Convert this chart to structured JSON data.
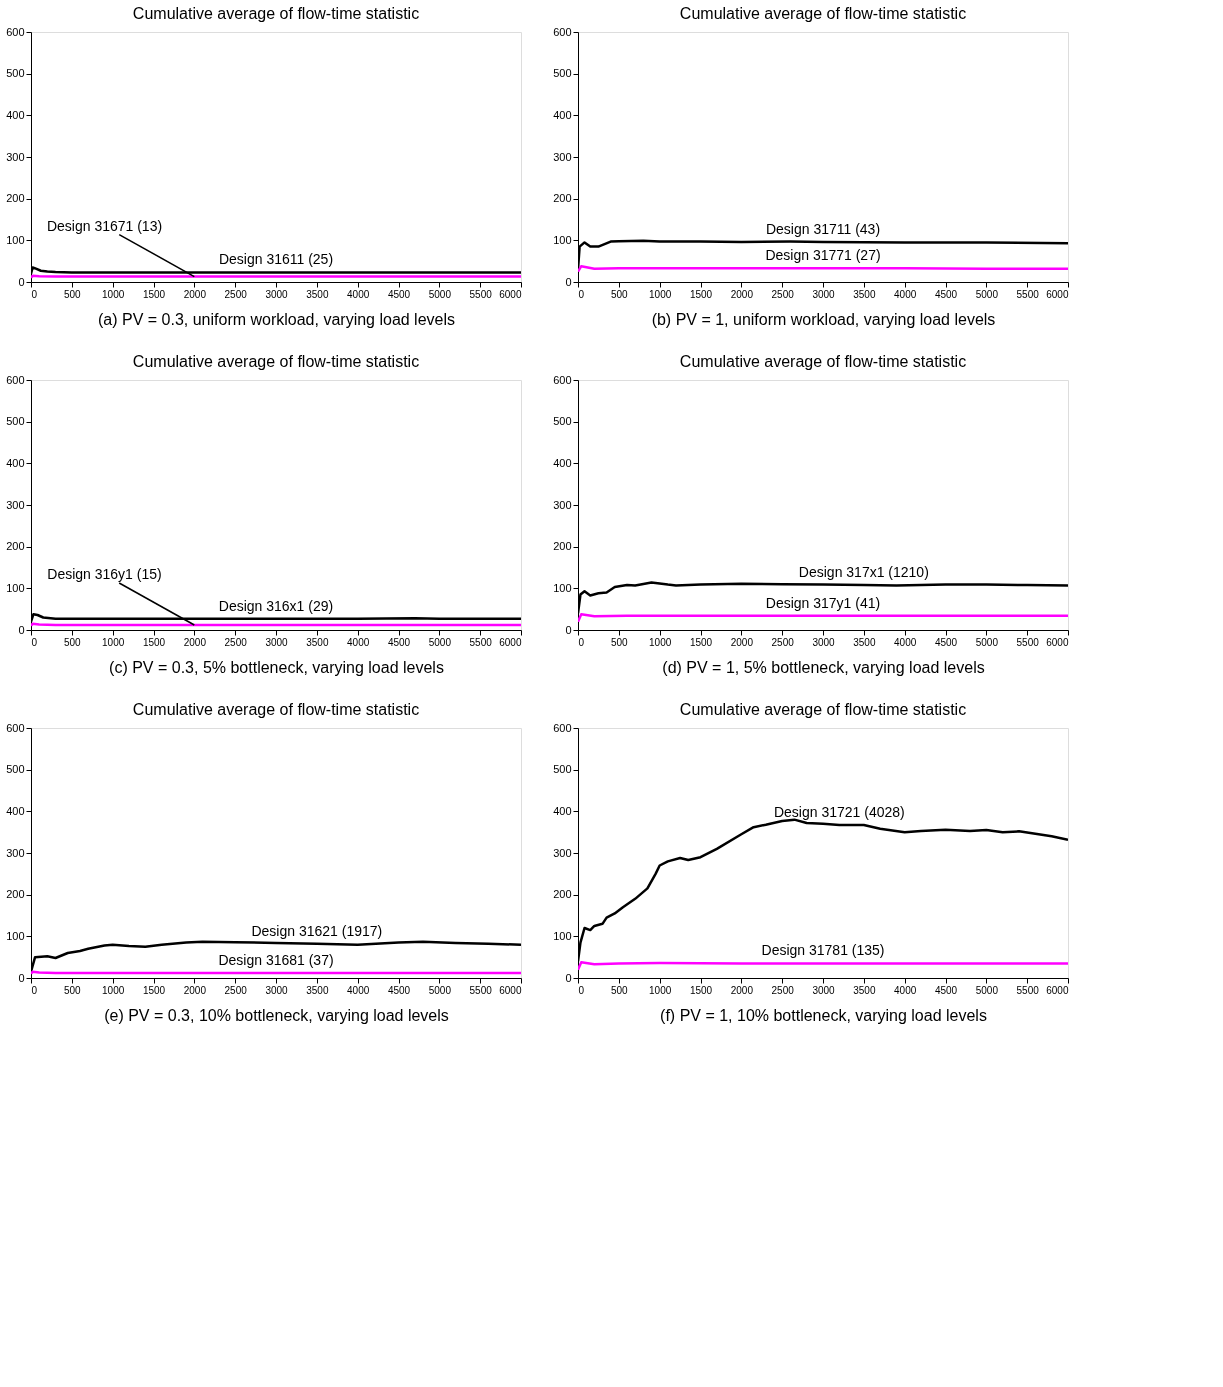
{
  "chart_data": [
    {
      "type": "line",
      "title": "Cumulative average of flow-time statistic",
      "xlabel": "(a) PV = 0.3, uniform workload, varying load levels",
      "xlim": [
        0,
        6000
      ],
      "ylim": [
        0,
        600
      ],
      "xticks": [
        0,
        500,
        1000,
        1500,
        2000,
        2500,
        3000,
        3500,
        4000,
        4500,
        5000,
        5500,
        6000
      ],
      "yticks": [
        0,
        100,
        200,
        300,
        400,
        500,
        600
      ],
      "grid": false,
      "legend": false,
      "line_style": "solid",
      "series": [
        {
          "name": "Design 31611 (25)",
          "color": "#000000",
          "x": [
            0,
            20,
            60,
            120,
            200,
            300,
            500,
            1000,
            2000,
            3000,
            4000,
            5000,
            6000
          ],
          "values": [
            20,
            35,
            32,
            27,
            25,
            24,
            23,
            23,
            23,
            23,
            23,
            23,
            23
          ]
        },
        {
          "name": "Design 31671 (13)",
          "color": "#ff00ff",
          "x": [
            0,
            20,
            100,
            300,
            1000,
            2000,
            3000,
            4000,
            5000,
            6000
          ],
          "values": [
            10,
            15,
            14,
            13,
            13,
            13,
            13,
            13,
            13,
            13
          ]
        }
      ]
    },
    {
      "type": "line",
      "title": "Cumulative average of flow-time statistic",
      "xlabel": "(b) PV = 1, uniform workload, varying load levels",
      "xlim": [
        0,
        6000
      ],
      "ylim": [
        0,
        600
      ],
      "xticks": [
        0,
        500,
        1000,
        1500,
        2000,
        2500,
        3000,
        3500,
        4000,
        4500,
        5000,
        5500,
        6000
      ],
      "yticks": [
        0,
        100,
        200,
        300,
        400,
        500,
        600
      ],
      "grid": false,
      "legend": false,
      "line_style": "solid",
      "series": [
        {
          "name": "Design 31711 (43)",
          "color": "#000000",
          "x": [
            0,
            20,
            80,
            150,
            250,
            400,
            500,
            800,
            1000,
            1500,
            2000,
            2600,
            3000,
            4000,
            5000,
            6000
          ],
          "values": [
            30,
            85,
            95,
            85,
            85,
            97,
            98,
            99,
            97,
            97,
            96,
            97,
            96,
            95,
            95,
            93
          ]
        },
        {
          "name": "Design 31771 (27)",
          "color": "#ff00ff",
          "x": [
            0,
            40,
            200,
            500,
            1000,
            2000,
            3000,
            4000,
            5000,
            6000
          ],
          "values": [
            25,
            38,
            32,
            33,
            33,
            33,
            33,
            33,
            32,
            32
          ]
        }
      ]
    },
    {
      "type": "line",
      "title": "Cumulative average of flow-time statistic",
      "xlabel": "(c) PV = 0.3, 5% bottleneck, varying load levels",
      "xlim": [
        0,
        6000
      ],
      "ylim": [
        0,
        600
      ],
      "xticks": [
        0,
        500,
        1000,
        1500,
        2000,
        2500,
        3000,
        3500,
        4000,
        4500,
        5000,
        5500,
        6000
      ],
      "yticks": [
        0,
        100,
        200,
        300,
        400,
        500,
        600
      ],
      "grid": false,
      "legend": false,
      "line_style": "solid",
      "series": [
        {
          "name": "Design 316x1 (29)",
          "color": "#000000",
          "x": [
            0,
            30,
            80,
            150,
            300,
            1000,
            2000,
            3000,
            4000,
            4700,
            5000,
            6000
          ],
          "values": [
            20,
            38,
            36,
            30,
            27,
            27,
            27,
            27,
            27,
            28,
            27,
            27
          ]
        },
        {
          "name": "Design 316y1 (15)",
          "color": "#ff00ff",
          "x": [
            0,
            20,
            100,
            300,
            1000,
            2000,
            3000,
            4000,
            5000,
            6000
          ],
          "values": [
            10,
            15,
            13,
            12,
            12,
            12,
            12,
            12,
            12,
            12
          ]
        }
      ]
    },
    {
      "type": "line",
      "title": "Cumulative average of flow-time statistic",
      "xlabel": "(d) PV = 1, 5% bottleneck, varying load levels",
      "xlim": [
        0,
        6000
      ],
      "ylim": [
        0,
        600
      ],
      "xticks": [
        0,
        500,
        1000,
        1500,
        2000,
        2500,
        3000,
        3500,
        4000,
        4500,
        5000,
        5500,
        6000
      ],
      "yticks": [
        0,
        100,
        200,
        300,
        400,
        500,
        600
      ],
      "grid": false,
      "legend": false,
      "line_style": "solid",
      "series": [
        {
          "name": "Design 317x1 (1210)",
          "color": "#000000",
          "x": [
            0,
            30,
            80,
            150,
            250,
            350,
            450,
            600,
            700,
            900,
            1100,
            1200,
            1500,
            2000,
            2500,
            3000,
            3500,
            3900,
            4500,
            5000,
            5500,
            6000
          ],
          "values": [
            40,
            85,
            93,
            83,
            88,
            90,
            103,
            108,
            107,
            114,
            109,
            107,
            109,
            111,
            110,
            109,
            108,
            107,
            109,
            109,
            108,
            107
          ]
        },
        {
          "name": "Design 317y1 (41)",
          "color": "#ff00ff",
          "x": [
            0,
            40,
            200,
            600,
            1000,
            2000,
            3000,
            4000,
            5000,
            6000
          ],
          "values": [
            20,
            38,
            33,
            34,
            34,
            34,
            34,
            34,
            34,
            34
          ]
        }
      ]
    },
    {
      "type": "line",
      "title": "Cumulative average of flow-time statistic",
      "xlabel": "(e) PV = 0.3, 10% bottleneck, varying load levels",
      "xlim": [
        0,
        6000
      ],
      "ylim": [
        0,
        600
      ],
      "xticks": [
        0,
        500,
        1000,
        1500,
        2000,
        2500,
        3000,
        3500,
        4000,
        4500,
        5000,
        5500,
        6000
      ],
      "yticks": [
        0,
        100,
        200,
        300,
        400,
        500,
        600
      ],
      "grid": false,
      "legend": false,
      "line_style": "solid",
      "series": [
        {
          "name": "Design 31621 (1917)",
          "color": "#000000",
          "x": [
            0,
            50,
            200,
            300,
            450,
            600,
            700,
            900,
            1000,
            1200,
            1400,
            1600,
            1900,
            2100,
            2500,
            3000,
            3500,
            4000,
            4500,
            4800,
            5200,
            5600,
            6000
          ],
          "values": [
            15,
            50,
            52,
            48,
            60,
            65,
            70,
            78,
            80,
            77,
            75,
            80,
            85,
            87,
            86,
            84,
            82,
            80,
            85,
            87,
            84,
            82,
            80
          ]
        },
        {
          "name": "Design 31681 (37)",
          "color": "#ff00ff",
          "x": [
            0,
            20,
            100,
            300,
            1000,
            2000,
            3000,
            4000,
            5000,
            6000
          ],
          "values": [
            10,
            15,
            13,
            12,
            12,
            12,
            12,
            12,
            12,
            12
          ]
        }
      ]
    },
    {
      "type": "line",
      "title": "Cumulative average of flow-time statistic",
      "xlabel": "(f) PV = 1, 10% bottleneck, varying load levels",
      "xlim": [
        0,
        6000
      ],
      "ylim": [
        0,
        600
      ],
      "xticks": [
        0,
        500,
        1000,
        1500,
        2000,
        2500,
        3000,
        3500,
        4000,
        4500,
        5000,
        5500,
        6000
      ],
      "yticks": [
        0,
        100,
        200,
        300,
        400,
        500,
        600
      ],
      "grid": false,
      "legend": false,
      "line_style": "solid",
      "series": [
        {
          "name": "Design 31721 (4028)",
          "color": "#000000",
          "x": [
            0,
            30,
            80,
            150,
            200,
            300,
            350,
            450,
            550,
            700,
            850,
            950,
            1000,
            1100,
            1250,
            1350,
            1500,
            1700,
            2000,
            2150,
            2300,
            2500,
            2650,
            2800,
            3000,
            3200,
            3500,
            3700,
            4000,
            4200,
            4500,
            4800,
            5000,
            5200,
            5400,
            5600,
            5800,
            6000
          ],
          "values": [
            40,
            85,
            120,
            115,
            125,
            130,
            145,
            155,
            170,
            190,
            215,
            250,
            270,
            280,
            288,
            283,
            290,
            310,
            345,
            362,
            368,
            377,
            380,
            372,
            370,
            367,
            367,
            358,
            350,
            353,
            356,
            353,
            355,
            350,
            352,
            346,
            340,
            332
          ]
        },
        {
          "name": "Design 31781 (135)",
          "color": "#ff00ff",
          "x": [
            0,
            40,
            200,
            500,
            1000,
            2000,
            3000,
            4000,
            5000,
            6000
          ],
          "values": [
            20,
            38,
            33,
            35,
            36,
            35,
            35,
            35,
            35,
            35
          ]
        }
      ]
    }
  ]
}
